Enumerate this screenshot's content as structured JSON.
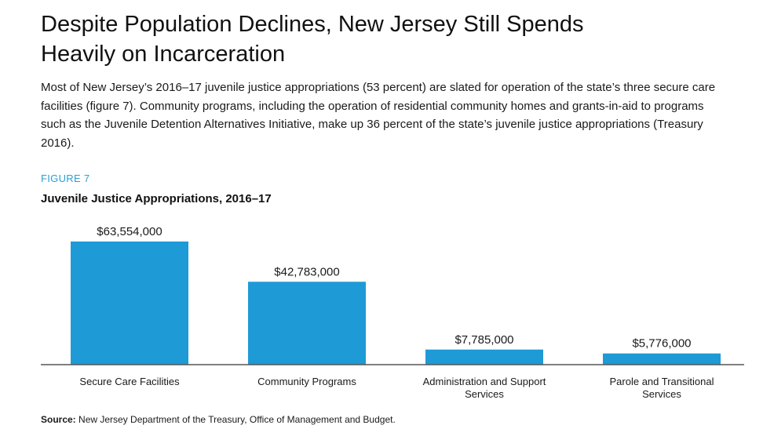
{
  "heading": {
    "line1": "Despite Population Declines, New Jersey Still Spends",
    "line2": "Heavily on Incarceration"
  },
  "intro": "Most of New Jersey’s 2016–17 juvenile justice appropriations (53 percent) are slated for operation of the state’s three secure care facilities (figure 7). Community programs, including the operation of residential community homes and grants-in-aid to programs such as the Juvenile Detention Alternatives Initiative, make up 36 percent of the state’s juvenile justice appropriations (Treasury 2016).",
  "figure_label": "FIGURE 7",
  "chart_data": {
    "type": "bar",
    "title": "Juvenile Justice Appropriations, 2016–17",
    "categories": [
      "Secure Care Facilities",
      "Community Programs",
      "Administration and Support Services",
      "Parole and Transitional Services"
    ],
    "category_lines": [
      [
        "Secure Care Facilities"
      ],
      [
        "Community Programs"
      ],
      [
        "Administration and Support",
        "Services"
      ],
      [
        "Parole and Transitional",
        "Services"
      ]
    ],
    "values": [
      63554000,
      42783000,
      7785000,
      5776000
    ],
    "data_labels": [
      "$63,554,000",
      "$42,783,000",
      "$7,785,000",
      "$5,776,000"
    ],
    "ylim": [
      0,
      63554000
    ],
    "bar_color": "#1e9ad6",
    "grid": false,
    "legend": "none"
  },
  "source": {
    "label": "Source:",
    "text": " New Jersey Department of the Treasury, Office of Management and Budget."
  }
}
